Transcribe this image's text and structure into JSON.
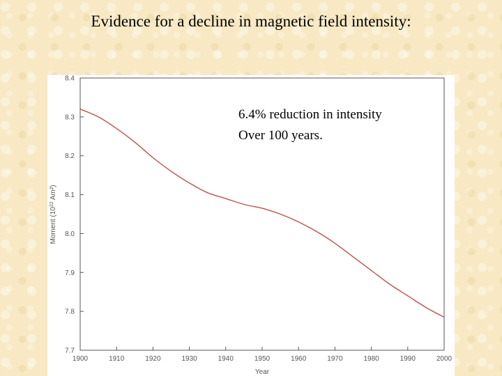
{
  "slide": {
    "title": "Evidence for a decline in magnetic field intensity:"
  },
  "annotation": {
    "line1": "6.4% reduction in intensity",
    "line2": "Over 100 years."
  },
  "chart_data": {
    "type": "line",
    "title": "",
    "xlabel": "Year",
    "ylabel": "Moment (10 Am²)",
    "ylabel_superscript": "22",
    "xlim": [
      1900,
      2000
    ],
    "ylim": [
      7.7,
      8.4
    ],
    "x_ticks": [
      "1900",
      "1910",
      "1920",
      "1930",
      "1940",
      "1950",
      "1960",
      "1970",
      "1980",
      "1990",
      "2000"
    ],
    "y_ticks": [
      "7.7",
      "7.8",
      "7.9",
      "8.0",
      "8.1",
      "8.2",
      "8.3",
      "8.4"
    ],
    "grid": false,
    "line_color": "#c0504d",
    "series": [
      {
        "x": [
          1900,
          1905,
          1910,
          1915,
          1920,
          1925,
          1930,
          1935,
          1940,
          1945,
          1950,
          1955,
          1960,
          1965,
          1970,
          1975,
          1980,
          1985,
          1990,
          1995,
          2000
        ],
        "y": [
          8.32,
          8.3,
          8.27,
          8.235,
          8.195,
          8.16,
          8.13,
          8.105,
          8.09,
          8.075,
          8.065,
          8.05,
          8.03,
          8.005,
          7.975,
          7.94,
          7.905,
          7.87,
          7.84,
          7.81,
          7.785
        ]
      }
    ]
  }
}
